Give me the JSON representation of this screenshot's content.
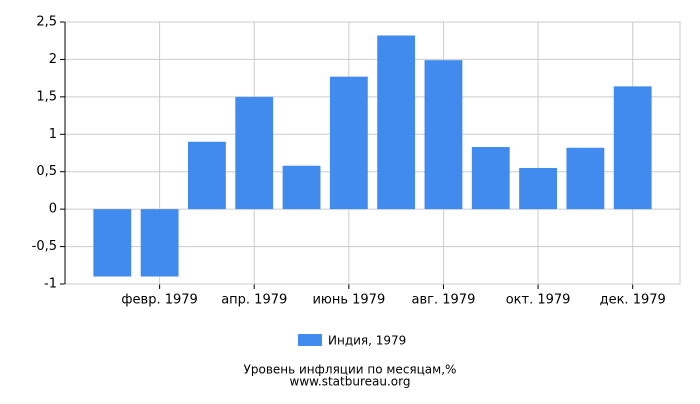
{
  "chart_data": {
    "type": "bar",
    "categories": [
      null,
      "февр. 1979",
      null,
      "апр. 1979",
      null,
      "июнь 1979",
      null,
      "авг. 1979",
      null,
      "окт. 1979",
      null,
      "дек. 1979"
    ],
    "series": [
      {
        "name": "Индия, 1979",
        "color": "#428bee",
        "values": [
          -0.9,
          -0.9,
          0.9,
          1.5,
          0.58,
          1.77,
          2.32,
          1.99,
          0.83,
          0.55,
          0.82,
          1.64
        ]
      }
    ],
    "ylim": [
      -1,
      2.5
    ],
    "yticks": [
      -1,
      {
        "value": -0.5,
        "label": "-0,5"
      },
      0,
      {
        "value": 0.5,
        "label": "0,5"
      },
      1,
      {
        "value": 1.5,
        "label": "1,5"
      },
      2,
      {
        "value": 2.5,
        "label": "2,5"
      }
    ],
    "grid": true,
    "title": "Уровень инфляции по месяцам,%",
    "subtitle": "www.statbureau.org"
  }
}
